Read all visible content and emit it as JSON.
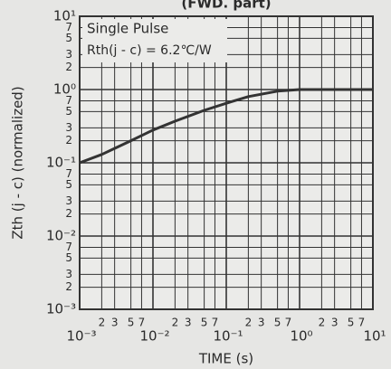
{
  "chart_data": {
    "type": "line",
    "title": "(FWD. part)",
    "xlabel": "TIME (s)",
    "ylabel": "Zth (j - c) (normalized)",
    "annotations": [
      "Single Pulse",
      "Rth(j - c) = 6.2℃/W"
    ],
    "log_x": true,
    "log_y": true,
    "grid": true,
    "xlim": [
      0.001,
      10
    ],
    "ylim": [
      0.001,
      10
    ],
    "xticks": [
      {
        "value": 0.001,
        "label": "10⁻³"
      },
      {
        "value": 0.002,
        "label": "2"
      },
      {
        "value": 0.003,
        "label": "3"
      },
      {
        "value": 0.005,
        "label": "5"
      },
      {
        "value": 0.007,
        "label": "7"
      },
      {
        "value": 0.01,
        "label": "10⁻²"
      },
      {
        "value": 0.02,
        "label": "2"
      },
      {
        "value": 0.03,
        "label": "3"
      },
      {
        "value": 0.05,
        "label": "5"
      },
      {
        "value": 0.07,
        "label": "7"
      },
      {
        "value": 0.1,
        "label": "10⁻¹"
      },
      {
        "value": 0.2,
        "label": "2"
      },
      {
        "value": 0.3,
        "label": "3"
      },
      {
        "value": 0.5,
        "label": "5"
      },
      {
        "value": 0.7,
        "label": "7"
      },
      {
        "value": 1,
        "label": "10⁰"
      },
      2,
      3,
      5,
      7,
      {
        "value": 10,
        "label": "10¹"
      }
    ],
    "yticks": [
      {
        "value": 0.001,
        "label": "10⁻³"
      },
      {
        "value": 0.002,
        "label": "2"
      },
      {
        "value": 0.003,
        "label": "3"
      },
      {
        "value": 0.005,
        "label": "5"
      },
      {
        "value": 0.007,
        "label": "7"
      },
      {
        "value": 0.01,
        "label": "10⁻²"
      },
      {
        "value": 0.02,
        "label": "2"
      },
      {
        "value": 0.03,
        "label": "3"
      },
      {
        "value": 0.05,
        "label": "5"
      },
      {
        "value": 0.07,
        "label": "7"
      },
      {
        "value": 0.1,
        "label": "10⁻¹"
      },
      {
        "value": 0.2,
        "label": "2"
      },
      {
        "value": 0.3,
        "label": "3"
      },
      {
        "value": 0.5,
        "label": "5"
      },
      {
        "value": 0.7,
        "label": "7"
      },
      {
        "value": 1,
        "label": "10⁰"
      },
      2,
      3,
      5,
      7,
      {
        "value": 10,
        "label": "10¹"
      }
    ],
    "x": [
      0.001,
      0.002,
      0.005,
      0.01,
      0.02,
      0.05,
      0.1,
      0.2,
      0.5,
      1,
      10
    ],
    "series": [
      {
        "color": "#333333",
        "values": [
          0.1,
          0.13,
          0.2,
          0.28,
          0.37,
          0.52,
          0.65,
          0.8,
          0.95,
          1,
          1
        ]
      }
    ]
  }
}
